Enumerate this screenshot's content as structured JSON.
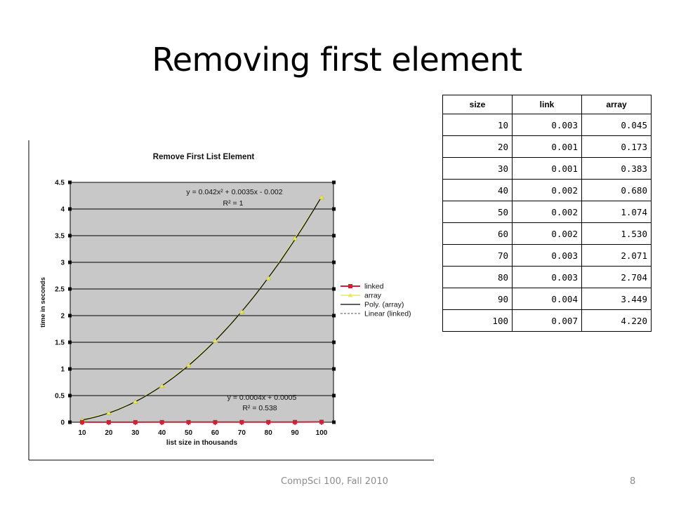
{
  "slide": {
    "title": "Removing first element",
    "footer": "CompSci 100, Fall 2010",
    "page_number": "8"
  },
  "table": {
    "headers": [
      "size",
      "link",
      "array"
    ],
    "rows": [
      [
        "10",
        "0.003",
        "0.045"
      ],
      [
        "20",
        "0.001",
        "0.173"
      ],
      [
        "30",
        "0.001",
        "0.383"
      ],
      [
        "40",
        "0.002",
        "0.680"
      ],
      [
        "50",
        "0.002",
        "1.074"
      ],
      [
        "60",
        "0.002",
        "1.530"
      ],
      [
        "70",
        "0.003",
        "2.071"
      ],
      [
        "80",
        "0.003",
        "2.704"
      ],
      [
        "90",
        "0.004",
        "3.449"
      ],
      [
        "100",
        "0.007",
        "4.220"
      ]
    ]
  },
  "chart_data": {
    "type": "scatter",
    "title": "Remove First List Element",
    "xlabel": "list size in thousands",
    "ylabel": "time in seconds",
    "x": [
      10,
      20,
      30,
      40,
      50,
      60,
      70,
      80,
      90,
      100
    ],
    "xlim": [
      10,
      100
    ],
    "ylim": [
      0,
      4.5
    ],
    "y_ticks": [
      0,
      0.5,
      1,
      1.5,
      2,
      2.5,
      3,
      3.5,
      4,
      4.5
    ],
    "grid": true,
    "legend_position": "right",
    "series": [
      {
        "name": "linked",
        "values": [
          0.003,
          0.001,
          0.001,
          0.002,
          0.002,
          0.002,
          0.003,
          0.003,
          0.004,
          0.007
        ],
        "color": "#cc2233",
        "marker": "square"
      },
      {
        "name": "array",
        "values": [
          0.045,
          0.173,
          0.383,
          0.68,
          1.074,
          1.53,
          2.071,
          2.704,
          3.449,
          4.22
        ],
        "color": "#e8e860",
        "marker": "triangle"
      }
    ],
    "trendlines": [
      {
        "name": "Poly. (array)",
        "kind": "polynomial",
        "color": "#000000",
        "style": "solid"
      },
      {
        "name": "Linear (linked)",
        "kind": "linear",
        "color": "#555555",
        "style": "dashed"
      }
    ],
    "annotations": [
      {
        "text": "y = 0.042x² + 0.0035x - 0.002",
        "text2": "R² = 1"
      },
      {
        "text": "y = 0.0004x + 0.0005",
        "text2": "R² = 0.538"
      }
    ]
  }
}
